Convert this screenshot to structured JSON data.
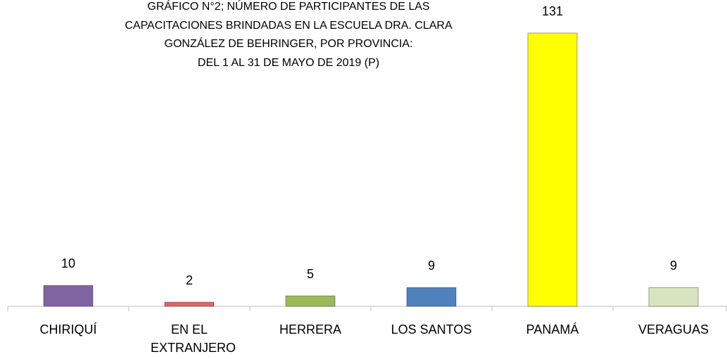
{
  "chart_data": {
    "type": "bar",
    "title": [
      "GRÁFICO N°2;  NÚMERO DE PARTICIPANTES DE LAS",
      "CAPACITACIONES BRINDADAS EN LA ESCUELA  DRA. CLARA",
      "GONZÁLEZ DE BEHRINGER, POR PROVINCIA:",
      "DEL 1 AL 31 DE MAYO DE 2019 (P)"
    ],
    "categories": [
      "CHIRIQUÍ",
      "EN EL EXTRANJERO",
      "HERRERA",
      "LOS SANTOS",
      "PANAMÁ",
      "VERAGUAS"
    ],
    "values": [
      10,
      2,
      5,
      9,
      131,
      9
    ],
    "colors": [
      "#8064a2",
      "#e06666",
      "#9bbb59",
      "#4f81bd",
      "#ffff00",
      "#d7e4bd"
    ],
    "ylim": [
      0,
      131
    ]
  }
}
